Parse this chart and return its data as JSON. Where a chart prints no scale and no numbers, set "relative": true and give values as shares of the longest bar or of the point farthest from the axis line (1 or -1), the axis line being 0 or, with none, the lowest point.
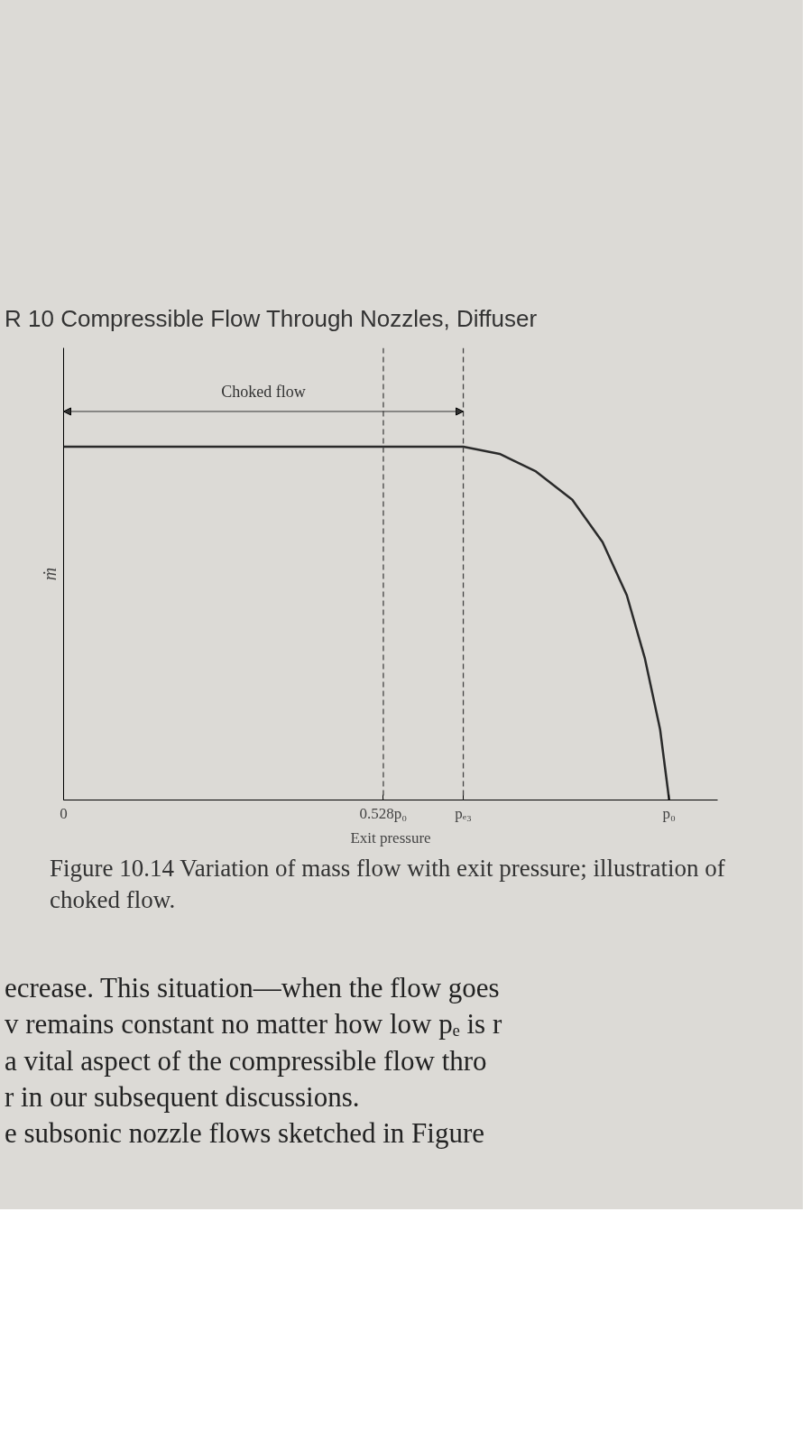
{
  "chart_data": {
    "type": "line",
    "title": "R 10   Compressible Flow Through Nozzles, Diffuser",
    "xlabel": "Exit pressure",
    "ylabel": "ṁ",
    "relative": true,
    "tick_labels": "x",
    "x": [
      0,
      0.66,
      0.72,
      0.78,
      0.84,
      0.89,
      0.93,
      0.96,
      0.985,
      1.0
    ],
    "series": [
      {
        "color": "#2a2a2a",
        "values": [
          1,
          1,
          0.98,
          0.93,
          0.85,
          0.73,
          0.58,
          0.4,
          0.2,
          0
        ]
      }
    ],
    "xlim": [
      0,
      1.08
    ],
    "xticks": [
      0,
      {
        "value": 0.528,
        "label": "0.528p₀"
      },
      {
        "value": 0.66,
        "label": "pₑ₃"
      },
      {
        "value": 1.0,
        "label": "p₀"
      }
    ],
    "ref_lines": [
      {
        "axis": "x",
        "value": 0.528,
        "color": "#444444",
        "line_style": "dashed"
      },
      {
        "axis": "x",
        "value": 0.66,
        "color": "#444444",
        "line_style": "dashed"
      }
    ],
    "grid": false,
    "marker": "none",
    "line_style": "solid",
    "annotations": [
      "Choked flow",
      "Figure 10.14 Variation of mass flow with exit pressure; illustration of choked flow.",
      "ecrease. This situation—when the flow goes",
      "v remains constant no matter how low pₑ is r",
      "a vital aspect of the compressible flow thro",
      "r in our subsequent discussions.",
      "e subsonic nozzle flows sketched in Figure"
    ]
  }
}
